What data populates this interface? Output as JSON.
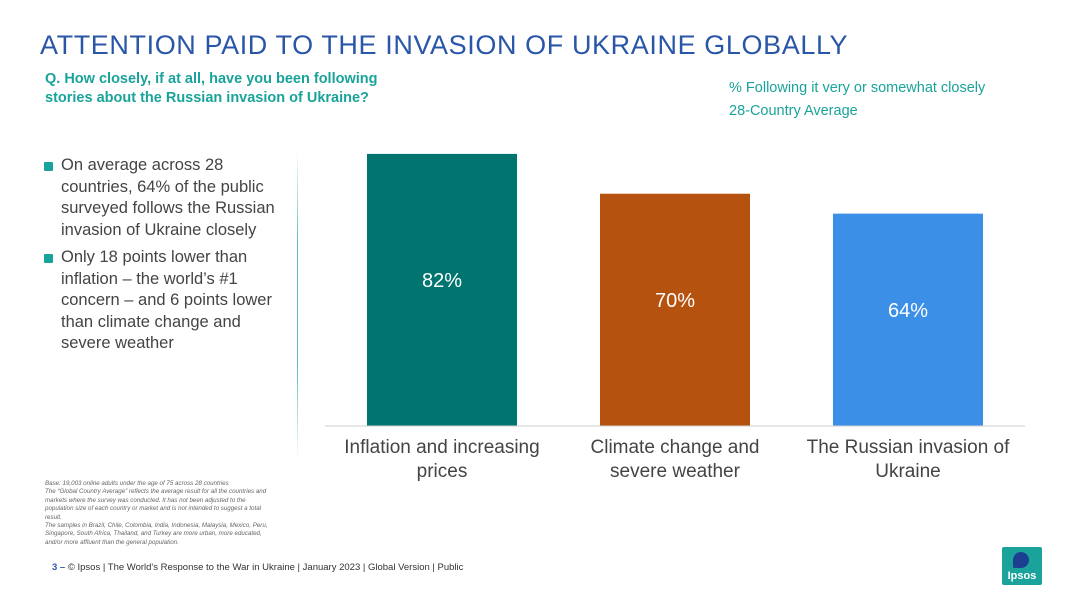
{
  "header": {
    "title": "ATTENTION PAID TO THE INVASION OF UKRAINE GLOBALLY",
    "question": "Q. How closely, if at all, have you been following stories about the Russian invasion of Ukraine?",
    "measure_label": "% Following it very or somewhat closely",
    "average_label": "28-Country Average"
  },
  "bullets": [
    "On average across 28 countries, 64% of the public surveyed follows the Russian invasion of Ukraine closely",
    "Only 18 points lower than inflation – the world’s #1 concern – and 6 points lower than climate change and severe weather"
  ],
  "base_note": [
    "Base: 19,003 online adults under the age of 75 across 28 countries",
    "The “Global Country Average” reflects the average result for all the countries and markets where the survey was conducted. It has not been adjusted to the population size of each country or market and is not intended to suggest a total result.",
    "The samples in Brazil, Chile, Colombia, India, Indonesia, Malaysia, Mexico, Peru, Singapore, South Africa, Thailand, and Turkey are more urban, more educated, and/or more affluent than the general population."
  ],
  "footer": {
    "page": "3 –",
    "text": "© Ipsos | The World's Response to the War in Ukraine | January 2023 | Global Version | Public"
  },
  "logo": {
    "text": "Ipsos"
  },
  "chart_data": {
    "type": "bar",
    "categories": [
      [
        "Inflation and increasing",
        "prices"
      ],
      [
        "Climate change and",
        "severe weather"
      ],
      [
        "The Russian invasion of",
        "Ukraine"
      ]
    ],
    "values": [
      82,
      70,
      64
    ],
    "value_labels": [
      "82%",
      "70%",
      "64%"
    ],
    "colors": [
      "#007570",
      "#b5520f",
      "#3b8fe6"
    ],
    "ylim": [
      0,
      88
    ],
    "grid": false,
    "title": "",
    "xlabel": "",
    "ylabel": ""
  }
}
